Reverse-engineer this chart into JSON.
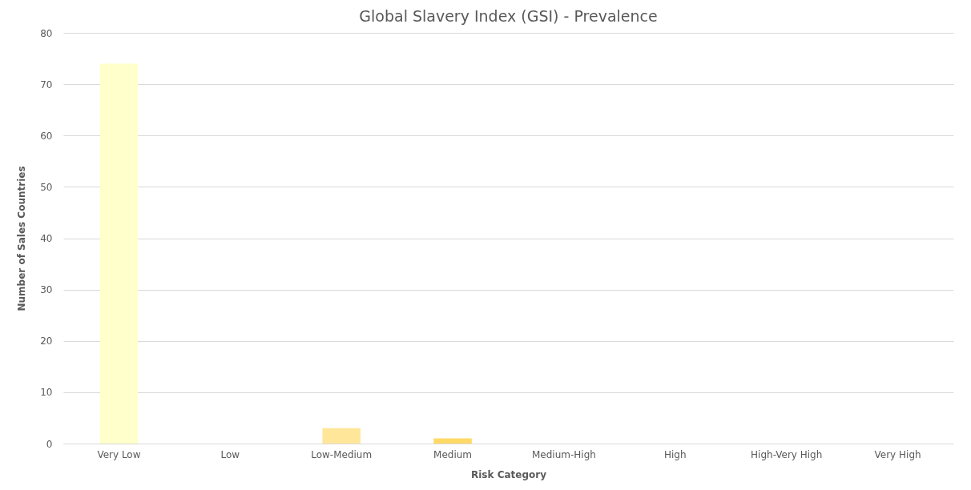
{
  "chart_data": {
    "type": "bar",
    "title": "Global Slavery Index (GSI) - Prevalence",
    "xlabel": "Risk Category",
    "ylabel": "Number of Sales Countries",
    "categories": [
      "Very Low",
      "Low",
      "Low-Medium",
      "Medium",
      "Medium-High",
      "High",
      "High-Very High",
      "Very High"
    ],
    "values": [
      74,
      0,
      3,
      1,
      0,
      0,
      0,
      0
    ],
    "colors": [
      "#ffffcc",
      "#fff2b3",
      "#ffe699",
      "#ffd966",
      "#ffc000",
      "#f4b183",
      "#ed7d31",
      "#c00000"
    ],
    "ylim": [
      0,
      80
    ],
    "yticks": [
      0,
      10,
      20,
      30,
      40,
      50,
      60,
      70,
      80
    ],
    "grid": "y"
  }
}
